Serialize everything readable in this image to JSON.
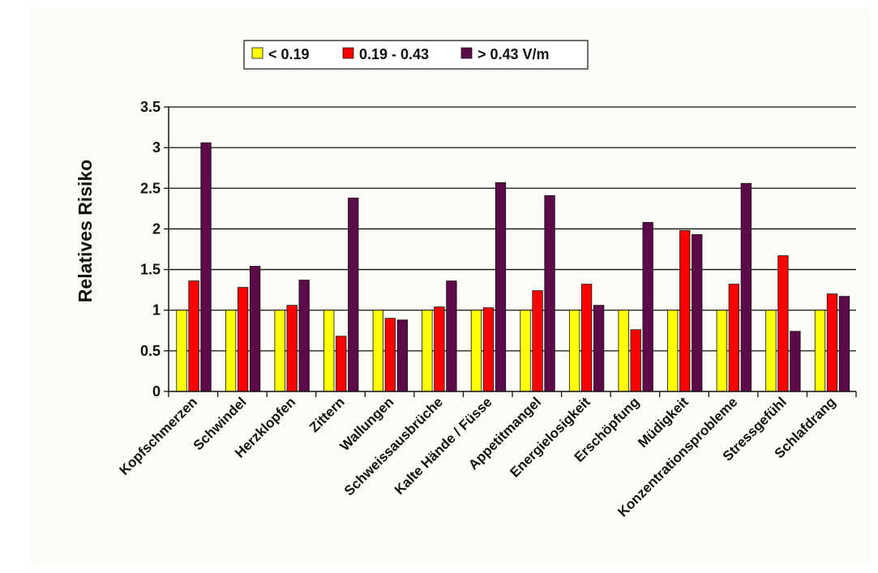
{
  "chart_data": {
    "type": "bar",
    "title": "",
    "xlabel": "",
    "ylabel": "Relatives Risiko",
    "ylim": [
      0,
      3.5
    ],
    "yticks": [
      "0",
      "0.5",
      "1",
      "1.5",
      "2",
      "2.5",
      "3",
      "3.5"
    ],
    "grid": true,
    "legend_position": "top",
    "categories": [
      "Kopfschmerzen",
      "Schwindel",
      "Herzklopfen",
      "Zittern",
      "Wallungen",
      "Schweissausbrüche",
      "Kalte Hände / Füsse",
      "Appetitmangel",
      "Energielosigkeit",
      "Erschöpfung",
      "Müdigkeit",
      "Konzentrationsprobleme",
      "Stressgefühl",
      "Schlafdrang"
    ],
    "series": [
      {
        "name": "< 0.19",
        "color": "#ffff00",
        "values": [
          1,
          1,
          1,
          1,
          1,
          1,
          1,
          1,
          1,
          1,
          1,
          1,
          1,
          1
        ]
      },
      {
        "name": "0.19 - 0.43",
        "color": "#ff0000",
        "values": [
          1.36,
          1.28,
          1.06,
          0.68,
          0.9,
          1.04,
          1.03,
          1.24,
          1.32,
          0.76,
          1.98,
          1.32,
          1.67,
          1.2
        ]
      },
      {
        "name": "> 0.43 V/m",
        "color": "#5c0a4a",
        "values": [
          3.06,
          1.54,
          1.37,
          2.38,
          0.88,
          1.36,
          2.57,
          2.41,
          1.06,
          2.08,
          1.93,
          2.56,
          0.74,
          1.17
        ]
      }
    ]
  }
}
